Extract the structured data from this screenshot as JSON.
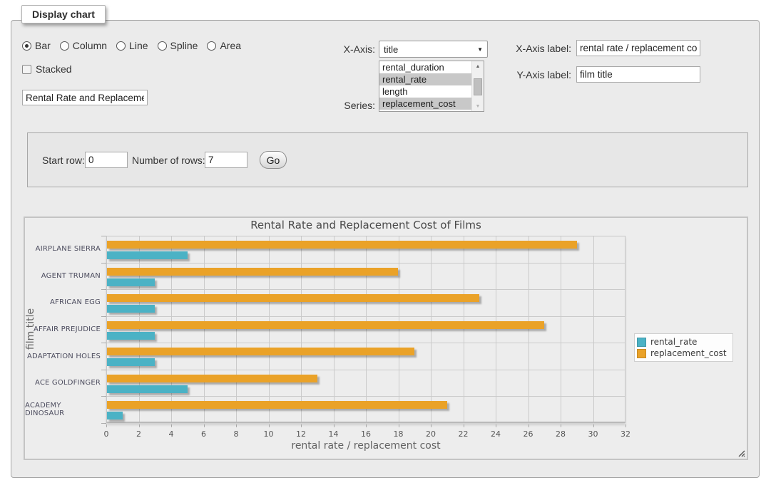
{
  "fieldset": {
    "legend": "Display chart"
  },
  "chart_type": {
    "options": [
      {
        "label": "Bar",
        "checked": true
      },
      {
        "label": "Column",
        "checked": false
      },
      {
        "label": "Line",
        "checked": false
      },
      {
        "label": "Spline",
        "checked": false
      },
      {
        "label": "Area",
        "checked": false
      }
    ],
    "stacked_label": "Stacked",
    "stacked_checked": false
  },
  "chart_title_input": "Rental Rate and Replacement Cost of Films",
  "x_axis_select": {
    "label": "X-Axis:",
    "selected": "title"
  },
  "series_select": {
    "label": "Series:",
    "options": [
      {
        "label": "rental_duration",
        "selected": false
      },
      {
        "label": "rental_rate",
        "selected": true
      },
      {
        "label": "length",
        "selected": false
      },
      {
        "label": "replacement_cost",
        "selected": true
      }
    ]
  },
  "axis_labels": {
    "x_label": "X-Axis label:",
    "x_value": "rental rate / replacement cost",
    "y_label": "Y-Axis label:",
    "y_value": "film title"
  },
  "row_controls": {
    "start_row_label": "Start row:",
    "start_row_value": "0",
    "num_rows_label": "Number of rows:",
    "num_rows_value": "7",
    "go_label": "Go"
  },
  "chart_data": {
    "type": "bar",
    "orientation": "horizontal",
    "title": "Rental Rate and Replacement Cost of Films",
    "xlabel": "rental rate / replacement cost",
    "ylabel": "film title",
    "categories": [
      "AIRPLANE SIERRA",
      "AGENT TRUMAN",
      "AFRICAN EGG",
      "AFFAIR PREJUDICE",
      "ADAPTATION HOLES",
      "ACE GOLDFINGER",
      "ACADEMY DINOSAUR"
    ],
    "series": [
      {
        "name": "rental_rate",
        "color": "#4bb2c5",
        "values": [
          4.99,
          2.99,
          2.99,
          2.99,
          2.99,
          4.99,
          0.99
        ]
      },
      {
        "name": "replacement_cost",
        "color": "#EAA228",
        "values": [
          28.99,
          17.99,
          22.99,
          26.99,
          18.99,
          12.99,
          20.99
        ]
      }
    ],
    "bar_display_order_top_to_bottom": [
      "replacement_cost",
      "rental_rate"
    ],
    "xlim": [
      0,
      32
    ],
    "xticks": [
      0,
      2,
      4,
      6,
      8,
      10,
      12,
      14,
      16,
      18,
      20,
      22,
      24,
      26,
      28,
      30,
      32
    ],
    "grid": true,
    "legend_position": "right"
  }
}
